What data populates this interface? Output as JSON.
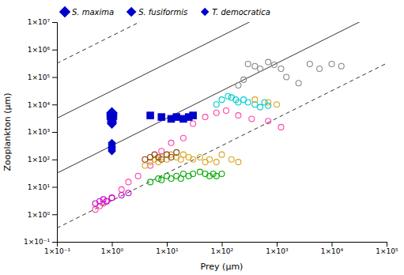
{
  "chart_data": {
    "type": "scatter",
    "log": true,
    "grid": false,
    "legend": "upper left",
    "xlabel": "Prey (μm)",
    "ylabel": "Zooplankton (μm)",
    "xlim": [
      0.1,
      100000
    ],
    "ylim": [
      0.1,
      10000000
    ],
    "xticks": [
      {
        "value": 0.1,
        "label": "1×10⁻¹"
      },
      {
        "value": 1,
        "label": "1×10⁰"
      },
      {
        "value": 10,
        "label": "1×10¹"
      },
      {
        "value": 100,
        "label": "1×10²"
      },
      {
        "value": 1000,
        "label": "1×10³"
      },
      {
        "value": 10000,
        "label": "1×10⁴"
      },
      {
        "value": 100000,
        "label": "1×10⁵"
      }
    ],
    "yticks": [
      {
        "value": 0.1,
        "label": "1×10⁻¹"
      },
      {
        "value": 1,
        "label": "1×10⁰"
      },
      {
        "value": 10,
        "label": "1×10¹"
      },
      {
        "value": 100,
        "label": "1×10²"
      },
      {
        "value": 1000,
        "label": "1×10³"
      },
      {
        "value": 10000,
        "label": "1×10⁴"
      },
      {
        "value": 100000,
        "label": "1×10⁵"
      },
      {
        "value": 1000000,
        "label": "1×10⁶"
      },
      {
        "value": 10000000,
        "label": "1×10⁷"
      }
    ],
    "reference_lines": [
      {
        "log_intercept": 2.5,
        "line_style": "solid"
      },
      {
        "log_intercept": 4.5,
        "line_style": "solid"
      },
      {
        "log_intercept": 0.5,
        "line_style": "dashed"
      },
      {
        "log_intercept": 6.5,
        "line_style": "dashed"
      }
    ],
    "series": [
      {
        "color": "#ff44aa",
        "marker": "open-circle",
        "x": [
          0.5,
          0.6,
          0.7,
          0.8,
          1.0,
          1.5,
          2.0,
          3.0,
          5.0,
          8.0,
          12.0,
          20.0,
          30.0,
          50.0,
          80.0,
          120.0,
          200.0,
          350.0,
          700.0,
          1200.0
        ],
        "values": [
          1.5,
          2.0,
          2.5,
          3.0,
          4.0,
          8.0,
          15.0,
          25.0,
          60.0,
          200.0,
          400.0,
          600.0,
          2000.0,
          3500.0,
          5000.0,
          6000.0,
          4000.0,
          3000.0,
          2500.0,
          1500.0
        ]
      },
      {
        "color": "#cc00cc",
        "marker": "open-circle",
        "x": [
          0.5,
          0.6,
          0.7,
          0.8,
          1.0,
          1.5,
          2.0
        ],
        "values": [
          2.5,
          3.0,
          3.5,
          3.0,
          4.0,
          5.0,
          6.0
        ]
      },
      {
        "color": "#888888",
        "marker": "open-circle",
        "x": [
          200,
          250,
          300,
          400,
          500,
          700,
          900,
          1200,
          1500,
          2500,
          4000,
          6000,
          10000,
          15000
        ],
        "values": [
          50000,
          80000,
          300000,
          250000,
          200000,
          350000,
          280000,
          200000,
          100000,
          60000,
          300000,
          200000,
          300000,
          250000
        ]
      },
      {
        "color": "#00cccc",
        "marker": "open-circle",
        "x": [
          80,
          100,
          130,
          150,
          180,
          200,
          250,
          300,
          400,
          500,
          600,
          700
        ],
        "values": [
          10000,
          15000,
          20000,
          18000,
          15000,
          12000,
          15000,
          12000,
          10000,
          8000,
          12000,
          9000
        ]
      },
      {
        "color": "#DAA520",
        "marker": "open-circle",
        "x": [
          4,
          5,
          6,
          7,
          8,
          10,
          12,
          15,
          18,
          20,
          25,
          30,
          40,
          50,
          60,
          80,
          100,
          150,
          200,
          400,
          700,
          1000
        ],
        "values": [
          60,
          80,
          100,
          80,
          120,
          100,
          150,
          120,
          100,
          150,
          120,
          100,
          120,
          80,
          100,
          80,
          150,
          100,
          80,
          15000,
          12000,
          10000
        ]
      },
      {
        "color": "#00aa00",
        "marker": "open-circle",
        "x": [
          5,
          7,
          8,
          10,
          12,
          15,
          18,
          20,
          25,
          30,
          40,
          50,
          60,
          70,
          80,
          100
        ],
        "values": [
          15,
          20,
          18,
          25,
          20,
          25,
          20,
          30,
          25,
          30,
          35,
          30,
          25,
          30,
          25,
          30
        ]
      },
      {
        "color": "#8B4513",
        "marker": "open-circle",
        "x": [
          4,
          5,
          6,
          7,
          8,
          10,
          12,
          15
        ],
        "values": [
          100,
          120,
          150,
          120,
          100,
          150,
          120,
          180
        ]
      },
      {
        "name": "S. maxima",
        "color": "#0000cc",
        "marker": "diamond",
        "x": [
          1.0,
          1.0,
          1.0,
          1.0,
          1.0
        ],
        "values": [
          5000,
          4500,
          4000,
          3500,
          3000
        ]
      },
      {
        "name": "S. fusiformis",
        "color": "#0000cc",
        "marker": "diamond",
        "x": [
          1.0,
          1.0,
          1.0
        ],
        "values": [
          2500,
          2200,
          2000
        ]
      },
      {
        "name": "T. democratica",
        "color": "#0000cc",
        "marker": "diamond",
        "x": [
          1.0,
          1.0,
          1.0,
          1.0,
          1.0,
          1.0,
          1.0
        ],
        "values": [
          400,
          350,
          300,
          280,
          250,
          220,
          200
        ]
      },
      {
        "color": "#0000cc",
        "marker": "square",
        "x": [
          5,
          8,
          12,
          15,
          20,
          25,
          30
        ],
        "values": [
          4000,
          3500,
          3000,
          3500,
          3000,
          3500,
          4000
        ]
      }
    ]
  }
}
